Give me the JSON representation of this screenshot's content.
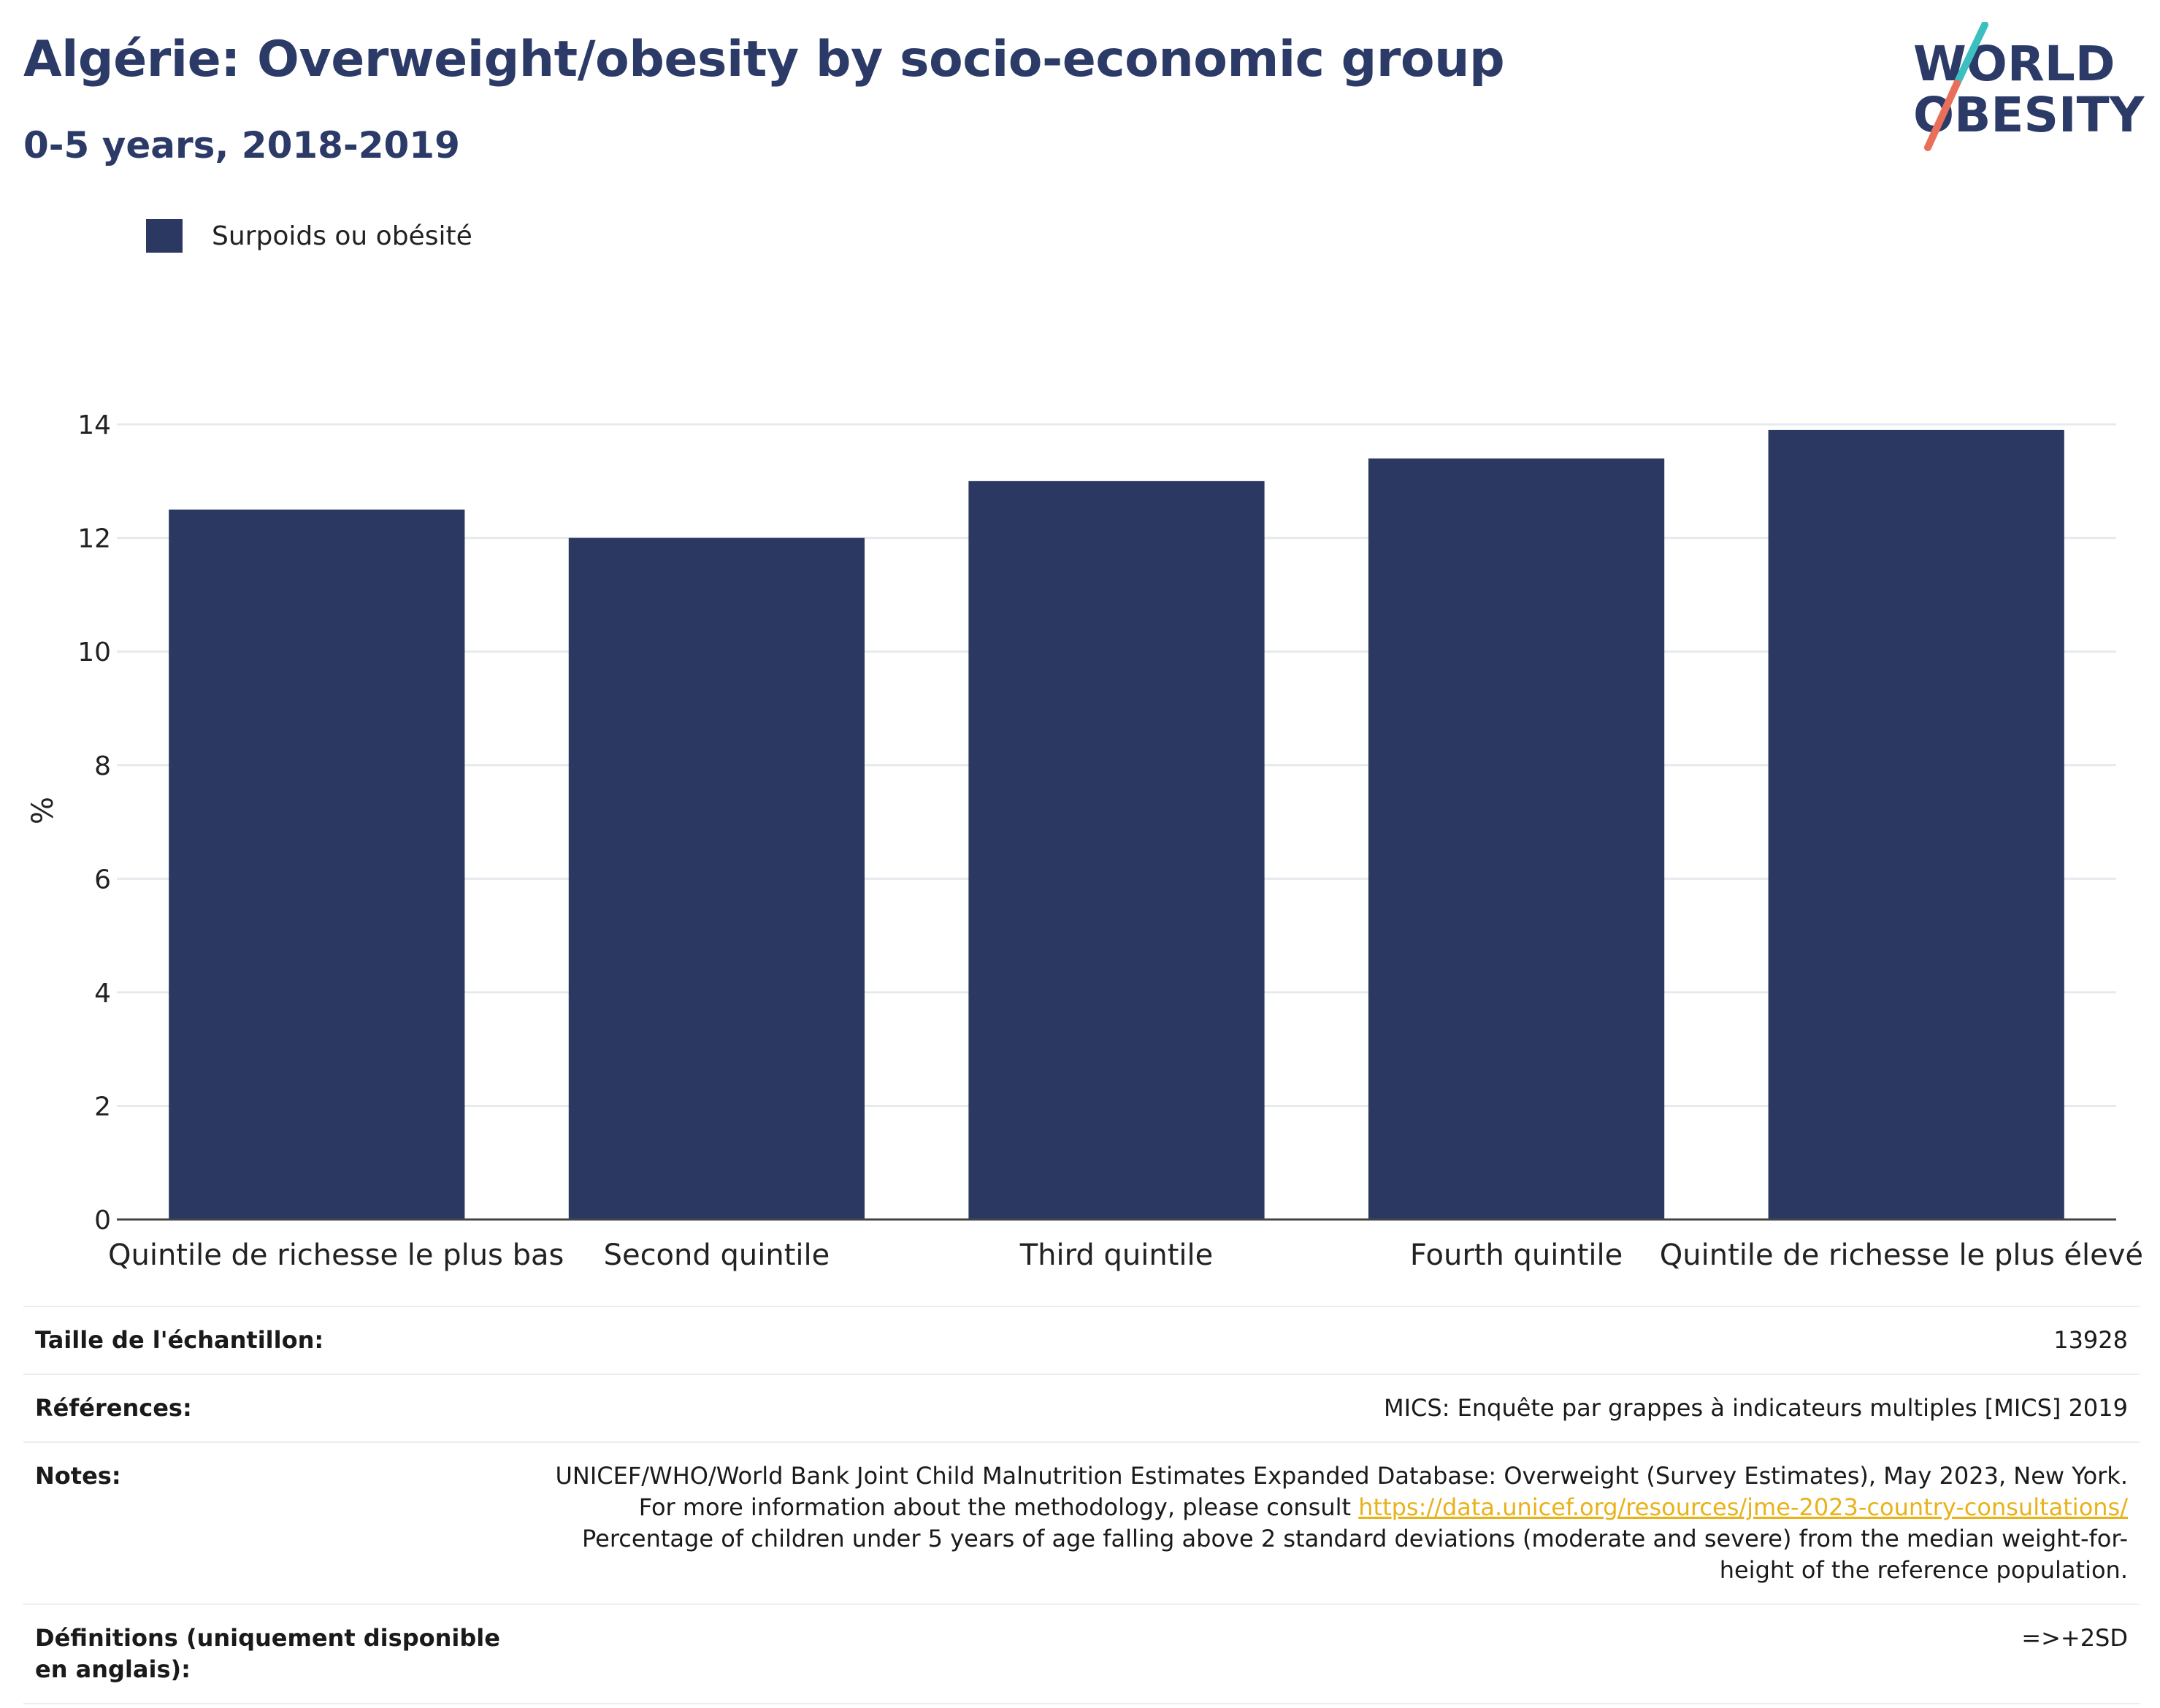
{
  "header": {
    "title": "Algérie: Overweight/obesity by socio-economic group",
    "subtitle": "0-5 years, 2018-2019"
  },
  "logo": {
    "line1": "WORLD",
    "line2": "OBESITY",
    "colors": {
      "text": "#2b3a67",
      "slash_top": "#3bbfbf",
      "slash_bottom": "#e8705a"
    }
  },
  "colors": {
    "bar": "#2b3862",
    "grid": "#e6eaee",
    "axis": "#444444"
  },
  "chart_data": {
    "type": "bar",
    "title": "Algérie: Overweight/obesity by socio-economic group",
    "subtitle": "0-5 years, 2018-2019",
    "categories": [
      "Quintile de richesse le plus bas",
      "Second quintile",
      "Third quintile",
      "Fourth quintile",
      "Quintile de richesse le plus élevé"
    ],
    "series": [
      {
        "name": "Surpoids ou obésité",
        "values": [
          12.5,
          12.0,
          13.0,
          13.4,
          13.9
        ]
      }
    ],
    "ylabel": "%",
    "ylim": [
      0,
      14.4
    ],
    "yticks": [
      0,
      2,
      4,
      6,
      8,
      10,
      12,
      14
    ],
    "grid": true,
    "legend_position": "top-left"
  },
  "info": {
    "rows": [
      {
        "key": "Taille de l'échantillon:",
        "value": "13928"
      },
      {
        "key": "Références:",
        "value": "MICS: Enquête par grappes à indicateurs multiples [MICS] 2019"
      },
      {
        "key": "Notes:",
        "value_pre": "UNICEF/WHO/World Bank Joint Child Malnutrition Estimates Expanded Database: Overweight (Survey Estimates), May 2023, New York. For more information about the methodology, please consult ",
        "link": "https://data.unicef.org/resources/jme-2023-country-consultations/",
        "value_post": " Percentage of children under 5 years of age falling above 2 standard deviations (moderate and severe) from the median weight-for-height of the reference population."
      },
      {
        "key": "Définitions (uniquement disponible en anglais):",
        "value": "=>+2SD"
      }
    ]
  }
}
